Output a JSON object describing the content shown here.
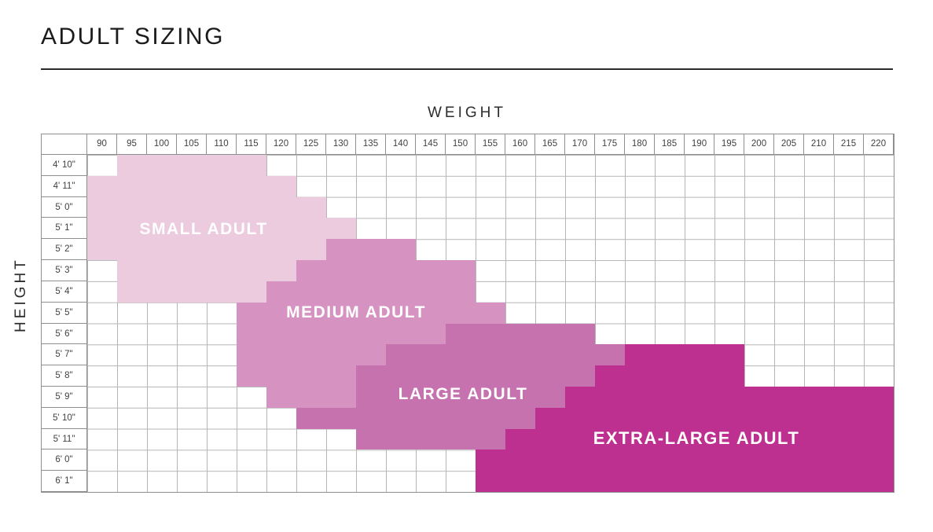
{
  "page": {
    "title": "ADULT SIZING"
  },
  "colors": {
    "grid_line": "#b5b5b5",
    "table_border": "#8f8f8f",
    "title_text": "#1b1b1b",
    "axis_text": "#2d2d2d",
    "cell_text": "#414141",
    "region_label_text": "#ffffff"
  },
  "chart_data": {
    "type": "heatmap",
    "title": "ADULT SIZING",
    "x_title": "WEIGHT",
    "y_title": "HEIGHT",
    "weights": [
      90,
      95,
      100,
      105,
      110,
      115,
      120,
      125,
      130,
      135,
      140,
      145,
      150,
      155,
      160,
      165,
      170,
      175,
      180,
      185,
      190,
      195,
      200,
      205,
      210,
      215,
      220
    ],
    "heights": [
      "4' 10\"",
      "4' 11\"",
      "5' 0\"",
      "5' 1\"",
      "5' 2\"",
      "5' 3\"",
      "5' 4\"",
      "5' 5\"",
      "5' 6\"",
      "5' 7\"",
      "5' 8\"",
      "5' 9\"",
      "5' 10\"",
      "5' 11\"",
      "6' 0\"",
      "6' 1\""
    ],
    "regions": [
      {
        "name": "small-adult",
        "label": "SMALL ADULT",
        "color": "#eccbdf",
        "spans": [
          {
            "height": "4' 10\"",
            "from": 95,
            "to": 115
          },
          {
            "height": "4' 11\"",
            "from": 90,
            "to": 120
          },
          {
            "height": "5' 0\"",
            "from": 90,
            "to": 125
          },
          {
            "height": "5' 1\"",
            "from": 90,
            "to": 130
          },
          {
            "height": "5' 2\"",
            "from": 90,
            "to": 125
          },
          {
            "height": "5' 3\"",
            "from": 95,
            "to": 120
          },
          {
            "height": "5' 4\"",
            "from": 95,
            "to": 115
          }
        ]
      },
      {
        "name": "medium-adult",
        "label": "MEDIUM ADULT",
        "color": "#d693c2",
        "spans": [
          {
            "height": "5' 2\"",
            "from": 130,
            "to": 140
          },
          {
            "height": "5' 3\"",
            "from": 125,
            "to": 150
          },
          {
            "height": "5' 4\"",
            "from": 120,
            "to": 150
          },
          {
            "height": "5' 5\"",
            "from": 115,
            "to": 155
          },
          {
            "height": "5' 6\"",
            "from": 115,
            "to": 145
          },
          {
            "height": "5' 7\"",
            "from": 115,
            "to": 135
          },
          {
            "height": "5' 8\"",
            "from": 115,
            "to": 130
          },
          {
            "height": "5' 9\"",
            "from": 120,
            "to": 130
          }
        ]
      },
      {
        "name": "large-adult",
        "label": "LARGE ADULT",
        "color": "#c672ae",
        "spans": [
          {
            "height": "5' 6\"",
            "from": 150,
            "to": 170
          },
          {
            "height": "5' 7\"",
            "from": 140,
            "to": 175
          },
          {
            "height": "5' 8\"",
            "from": 135,
            "to": 170
          },
          {
            "height": "5' 9\"",
            "from": 135,
            "to": 165
          },
          {
            "height": "5' 10\"",
            "from": 125,
            "to": 160
          },
          {
            "height": "5' 11\"",
            "from": 135,
            "to": 155
          }
        ]
      },
      {
        "name": "extra-large-adult",
        "label": "EXTRA-LARGE ADULT",
        "color": "#be3090",
        "spans": [
          {
            "height": "5' 7\"",
            "from": 180,
            "to": 195
          },
          {
            "height": "5' 8\"",
            "from": 175,
            "to": 195
          },
          {
            "height": "5' 9\"",
            "from": 170,
            "to": 220
          },
          {
            "height": "5' 10\"",
            "from": 165,
            "to": 220
          },
          {
            "height": "5' 11\"",
            "from": 160,
            "to": 220
          },
          {
            "height": "6' 0\"",
            "from": 155,
            "to": 220
          },
          {
            "height": "6' 1\"",
            "from": 155,
            "to": 220
          }
        ]
      }
    ]
  }
}
